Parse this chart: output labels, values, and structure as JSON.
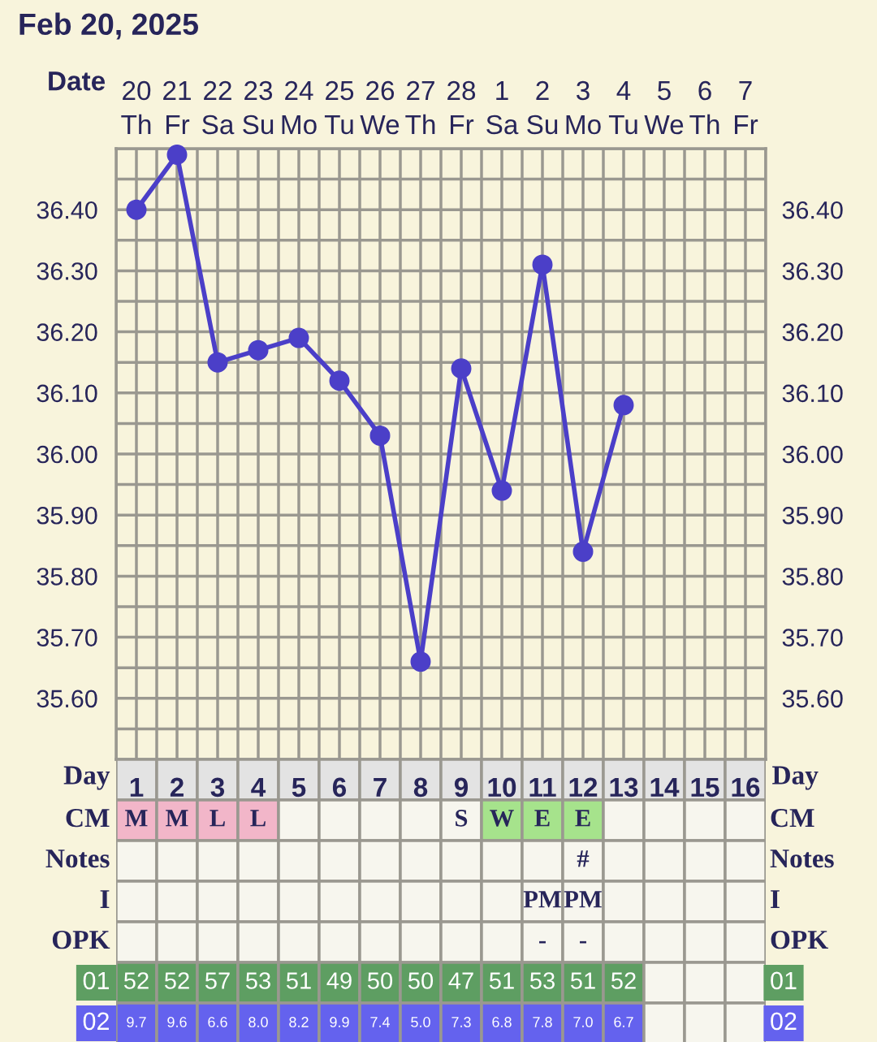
{
  "chart_data": [
    {
      "type": "line",
      "title": "Feb 20, 2025",
      "xlabel": "Date",
      "categories": [
        "20\nTh",
        "21\nFr",
        "22\nSa",
        "23\nSu",
        "24\nMo",
        "25\nTu",
        "26\nWe",
        "27\nTh",
        "28\nFr",
        "1\nSa",
        "2\nSu",
        "3\nMo",
        "4\nTu",
        "5\nWe",
        "6\nTh",
        "7\nFr"
      ],
      "series": [
        {
          "color": "#4b3fc8",
          "values": [
            36.4,
            36.49,
            36.15,
            36.17,
            36.19,
            36.12,
            36.03,
            35.66,
            36.14,
            35.94,
            36.31,
            35.84,
            36.08,
            null,
            null,
            null
          ]
        }
      ],
      "ylim": [
        35.5,
        36.5
      ],
      "yticks": [
        {
          "value": 35.5,
          "label": null
        },
        {
          "value": 35.55,
          "label": null
        },
        {
          "value": 35.6,
          "label": "35.60"
        },
        {
          "value": 35.65,
          "label": null
        },
        {
          "value": 35.7,
          "label": "35.70"
        },
        {
          "value": 35.75,
          "label": null
        },
        {
          "value": 35.8,
          "label": "35.80"
        },
        {
          "value": 35.85,
          "label": null
        },
        {
          "value": 35.9,
          "label": "35.90"
        },
        {
          "value": 35.95,
          "label": null
        },
        {
          "value": 36.0,
          "label": "36.00"
        },
        {
          "value": 36.05,
          "label": null
        },
        {
          "value": 36.1,
          "label": "36.10"
        },
        {
          "value": 36.15,
          "label": null
        },
        {
          "value": 36.2,
          "label": "36.20"
        },
        {
          "value": 36.25,
          "label": null
        },
        {
          "value": 36.3,
          "label": "36.30"
        },
        {
          "value": 36.35,
          "label": null
        },
        {
          "value": 36.4,
          "label": "36.40"
        },
        {
          "value": 36.45,
          "label": null
        },
        {
          "value": 36.5,
          "label": null
        }
      ],
      "y2lim": [
        35.5,
        36.5
      ],
      "y2ticks": [
        {
          "value": 35.6,
          "label": "35.60"
        },
        {
          "value": 35.7,
          "label": "35.70"
        },
        {
          "value": 35.8,
          "label": "35.80"
        },
        {
          "value": 35.9,
          "label": "35.90"
        },
        {
          "value": 36.0,
          "label": "36.00"
        },
        {
          "value": 36.1,
          "label": "36.10"
        },
        {
          "value": 36.2,
          "label": "36.20"
        },
        {
          "value": 36.3,
          "label": "36.30"
        },
        {
          "value": 36.4,
          "label": "36.40"
        }
      ],
      "grid": true,
      "marker": "circle",
      "line_style": "solid",
      "legend": false
    },
    {
      "type": "heatmap",
      "xlabel": "Day",
      "categories": [
        "1",
        "2",
        "3",
        "4",
        "5",
        "6",
        "7",
        "8",
        "9",
        "10",
        "11",
        "12",
        "13",
        "14",
        "15",
        "16"
      ],
      "y_categories": [
        "CM",
        "Notes",
        "I",
        "OPK",
        "01",
        "02"
      ],
      "y2_categories": [
        "CM",
        "Notes",
        "I",
        "OPK",
        "01",
        "02"
      ],
      "cells": [
        [
          null,
          null,
          null,
          null,
          null,
          null,
          null,
          null,
          null,
          null,
          null,
          null,
          null,
          null,
          null,
          null
        ],
        [
          null,
          null,
          null,
          null,
          null,
          null,
          null,
          null,
          null,
          null,
          null,
          null,
          null,
          null,
          null,
          null
        ],
        [
          null,
          null,
          null,
          null,
          null,
          null,
          null,
          null,
          null,
          null,
          null,
          null,
          null,
          null,
          null,
          null
        ],
        [
          null,
          null,
          null,
          null,
          null,
          null,
          null,
          null,
          null,
          null,
          null,
          null,
          null,
          null,
          null,
          null
        ],
        [
          52,
          52,
          57,
          53,
          51,
          49,
          50,
          50,
          47,
          51,
          53,
          51,
          52,
          null,
          null,
          null
        ],
        [
          9.7,
          9.6,
          6.6,
          8.0,
          8.2,
          9.9,
          7.4,
          5.0,
          7.3,
          6.8,
          7.8,
          7.0,
          6.7,
          null,
          null,
          null
        ]
      ],
      "cell_labels": [
        [
          "M",
          "M",
          "L",
          "L",
          null,
          null,
          null,
          null,
          "S",
          "W",
          "E",
          "E",
          null,
          null,
          null,
          null
        ],
        [
          null,
          null,
          null,
          null,
          null,
          null,
          null,
          null,
          null,
          null,
          null,
          "#",
          null,
          null,
          null,
          null
        ],
        [
          null,
          null,
          null,
          null,
          null,
          null,
          null,
          null,
          null,
          null,
          "PM",
          "PM",
          null,
          null,
          null,
          null
        ],
        [
          null,
          null,
          null,
          null,
          null,
          null,
          null,
          null,
          null,
          null,
          "-",
          "-",
          null,
          null,
          null,
          null
        ],
        [
          "52",
          "52",
          "57",
          "53",
          "51",
          "49",
          "50",
          "50",
          "47",
          "51",
          "53",
          "51",
          "52",
          null,
          null,
          null
        ],
        [
          "9.7",
          "9.6",
          "6.6",
          "8.0",
          "8.2",
          "9.9",
          "7.4",
          "5.0",
          "7.3",
          "6.8",
          "7.8",
          "7.0",
          "6.7",
          null,
          null,
          null
        ]
      ],
      "colors": [
        [
          "#f2b6c9",
          "#f2b6c9",
          "#f2b6c9",
          "#f2b6c9",
          null,
          null,
          null,
          null,
          null,
          "#a6e38c",
          "#a6e38c",
          "#a6e38c",
          null,
          null,
          null,
          null
        ],
        [
          null,
          null,
          null,
          null,
          null,
          null,
          null,
          null,
          null,
          null,
          null,
          null,
          null,
          null,
          null,
          null
        ],
        [
          null,
          null,
          null,
          null,
          null,
          null,
          null,
          null,
          null,
          null,
          null,
          null,
          null,
          null,
          null,
          null
        ],
        [
          null,
          null,
          null,
          null,
          null,
          null,
          null,
          null,
          null,
          null,
          null,
          null,
          null,
          null,
          null,
          null
        ],
        [
          "#5e9e62",
          "#5e9e62",
          "#5e9e62",
          "#5e9e62",
          "#5e9e62",
          "#5e9e62",
          "#5e9e62",
          "#5e9e62",
          "#5e9e62",
          "#5e9e62",
          "#5e9e62",
          "#5e9e62",
          "#5e9e62",
          null,
          null,
          null
        ],
        [
          "#6462ee",
          "#6462ee",
          "#6462ee",
          "#6462ee",
          "#6462ee",
          "#6462ee",
          "#6462ee",
          "#6462ee",
          "#6462ee",
          "#6462ee",
          "#6462ee",
          "#6462ee",
          "#6462ee",
          null,
          null,
          null
        ]
      ]
    }
  ]
}
